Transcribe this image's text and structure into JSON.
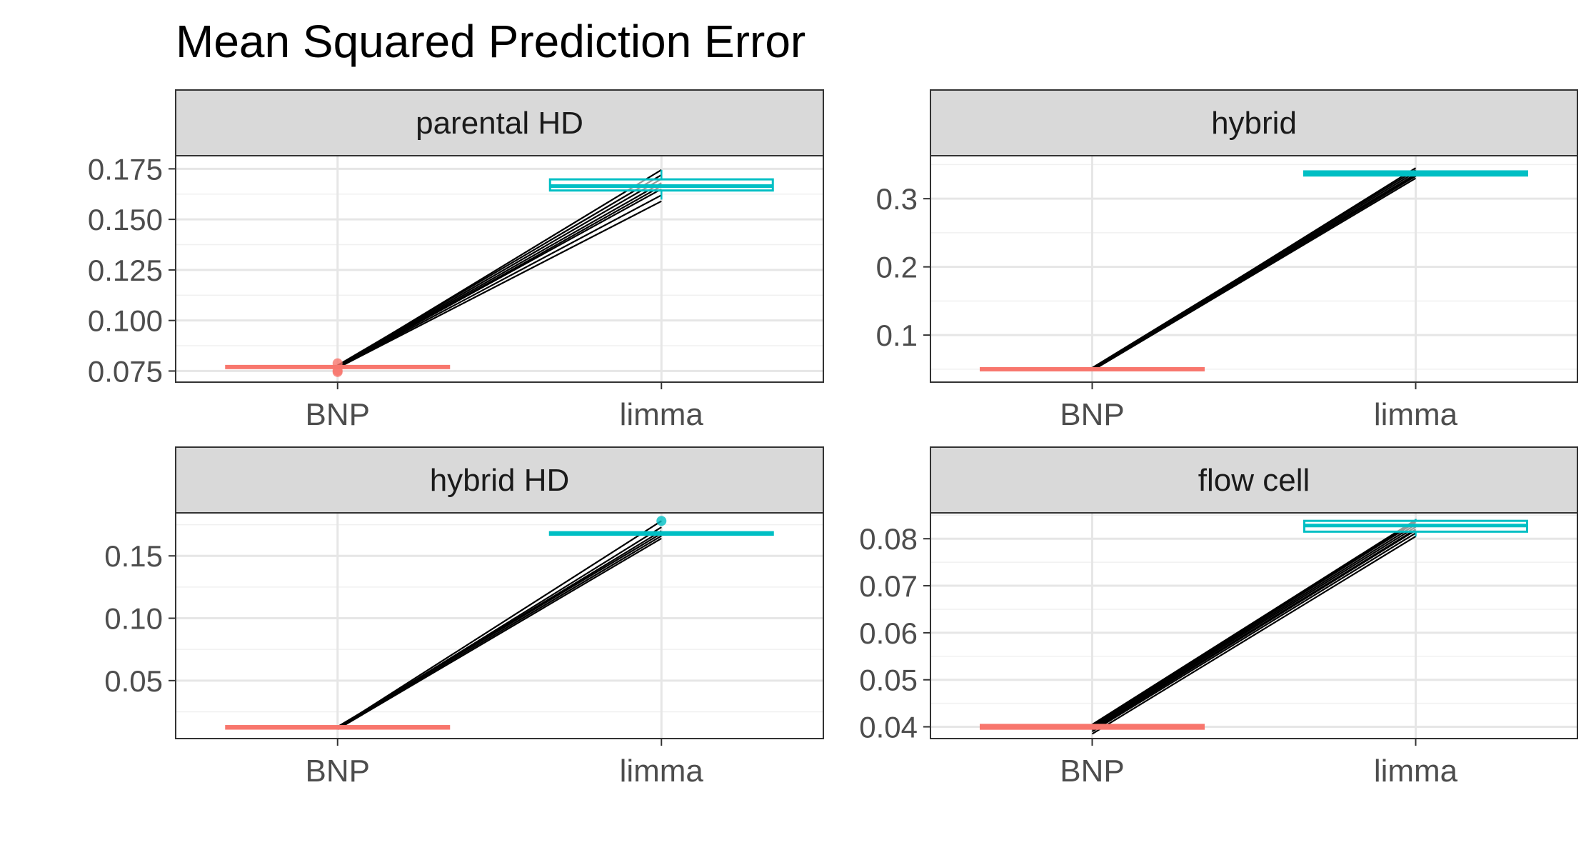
{
  "chart_data": {
    "type": "boxplot",
    "title": "Mean Squared Prediction Error",
    "categories": [
      "BNP",
      "limma"
    ],
    "colors": {
      "BNP": "#F8766D",
      "limma": "#00BFC4"
    },
    "grid": true,
    "facets": [
      {
        "label": "parental HD",
        "ylim": [
          0.0695,
          0.1815
        ],
        "yticks": [
          "0.075",
          "0.100",
          "0.125",
          "0.150",
          "0.175"
        ],
        "yticks_values": [
          0.075,
          0.1,
          0.125,
          0.15,
          0.175
        ],
        "boxes": [
          {
            "category": "BNP",
            "q1": 0.0765,
            "median": 0.077,
            "q3": 0.0775,
            "min": 0.0762,
            "max": 0.0778,
            "outliers": [
              0.0745,
              0.0752,
              0.0788
            ]
          },
          {
            "category": "limma",
            "q1": 0.1643,
            "median": 0.1665,
            "q3": 0.1698,
            "min": 0.1598,
            "max": 0.1745,
            "outliers": []
          }
        ],
        "lines": [
          [
            0.0765,
            0.159
          ],
          [
            0.0768,
            0.162
          ],
          [
            0.077,
            0.165
          ],
          [
            0.0772,
            0.168
          ],
          [
            0.0775,
            0.17
          ],
          [
            0.0778,
            0.172
          ],
          [
            0.0773,
            0.1745
          ],
          [
            0.0767,
            0.1665
          ]
        ]
      },
      {
        "label": "hybrid",
        "ylim": [
          0.031,
          0.363
        ],
        "yticks": [
          "0.1",
          "0.2",
          "0.3"
        ],
        "yticks_values": [
          0.1,
          0.2,
          0.3
        ],
        "boxes": [
          {
            "category": "BNP",
            "q1": 0.0485,
            "median": 0.05,
            "q3": 0.0515,
            "min": 0.048,
            "max": 0.052,
            "outliers": []
          },
          {
            "category": "limma",
            "q1": 0.334,
            "median": 0.337,
            "q3": 0.34,
            "min": 0.333,
            "max": 0.341,
            "outliers": []
          }
        ],
        "lines": [
          [
            0.048,
            0.33
          ],
          [
            0.049,
            0.333
          ],
          [
            0.05,
            0.336
          ],
          [
            0.051,
            0.339
          ],
          [
            0.052,
            0.342
          ],
          [
            0.0495,
            0.345
          ],
          [
            0.0505,
            0.335
          ]
        ]
      },
      {
        "label": "hybrid HD",
        "ylim": [
          0.0035,
          0.1845
        ],
        "yticks": [
          "0.05",
          "0.10",
          "0.15"
        ],
        "yticks_values": [
          0.05,
          0.1,
          0.15
        ],
        "boxes": [
          {
            "category": "BNP",
            "q1": 0.0115,
            "median": 0.0125,
            "q3": 0.0135,
            "min": 0.011,
            "max": 0.014,
            "outliers": []
          },
          {
            "category": "limma",
            "q1": 0.167,
            "median": 0.168,
            "q3": 0.169,
            "min": 0.1665,
            "max": 0.1695,
            "outliers": [
              0.178
            ]
          }
        ],
        "lines": [
          [
            0.011,
            0.164
          ],
          [
            0.012,
            0.166
          ],
          [
            0.013,
            0.168
          ],
          [
            0.0125,
            0.17
          ],
          [
            0.0118,
            0.173
          ],
          [
            0.0122,
            0.178
          ]
        ]
      },
      {
        "label": "flow cell",
        "ylim": [
          0.0375,
          0.0855
        ],
        "yticks": [
          "0.04",
          "0.05",
          "0.06",
          "0.07",
          "0.08"
        ],
        "yticks_values": [
          0.04,
          0.05,
          0.06,
          0.07,
          0.08
        ],
        "boxes": [
          {
            "category": "BNP",
            "q1": 0.0396,
            "median": 0.04,
            "q3": 0.0404,
            "min": 0.0394,
            "max": 0.0406,
            "outliers": []
          },
          {
            "category": "limma",
            "q1": 0.0815,
            "median": 0.0828,
            "q3": 0.0838,
            "min": 0.0805,
            "max": 0.0842,
            "outliers": []
          }
        ],
        "lines": [
          [
            0.0385,
            0.0805
          ],
          [
            0.039,
            0.0812
          ],
          [
            0.0395,
            0.082
          ],
          [
            0.0398,
            0.0825
          ],
          [
            0.04,
            0.083
          ],
          [
            0.0402,
            0.0835
          ],
          [
            0.0405,
            0.084
          ],
          [
            0.0393,
            0.0818
          ],
          [
            0.0401,
            0.0838
          ]
        ]
      }
    ]
  }
}
